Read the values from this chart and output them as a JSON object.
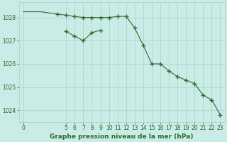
{
  "title": "Graphe pression niveau de la mer (hPa)",
  "background_color": "#c9ece6",
  "grid_color": "#b0d4cc",
  "line_color": "#2d6b2d",
  "line1_x": [
    0,
    1,
    2,
    3,
    4,
    5,
    6,
    7,
    8,
    9,
    10,
    11,
    12,
    13,
    14,
    15,
    16,
    17,
    18,
    19,
    20,
    21,
    22,
    23
  ],
  "line1_y": [
    1028.25,
    1028.25,
    1028.25,
    1028.2,
    1028.15,
    1028.1,
    1028.05,
    1028.0,
    1028.0,
    1028.0,
    1028.0,
    1028.05,
    1028.05,
    1027.55,
    1026.8,
    1026.0,
    1026.0,
    1025.7,
    1025.45,
    1025.3,
    1025.15,
    1024.65,
    1024.45,
    1023.8
  ],
  "line2_x": [
    5,
    6,
    7,
    8,
    9
  ],
  "line2_y": [
    1027.4,
    1027.2,
    1027.0,
    1027.35,
    1027.45
  ],
  "xlim": [
    -0.5,
    23.5
  ],
  "ylim": [
    1023.5,
    1028.65
  ],
  "yticks": [
    1024,
    1025,
    1026,
    1027,
    1028
  ],
  "xticks": [
    0,
    5,
    6,
    7,
    8,
    9,
    10,
    11,
    12,
    13,
    14,
    15,
    16,
    17,
    18,
    19,
    20,
    21,
    22,
    23
  ],
  "marker": "+",
  "markersize": 4,
  "linewidth": 0.8,
  "title_fontsize": 6.5,
  "tick_fontsize": 5.5
}
